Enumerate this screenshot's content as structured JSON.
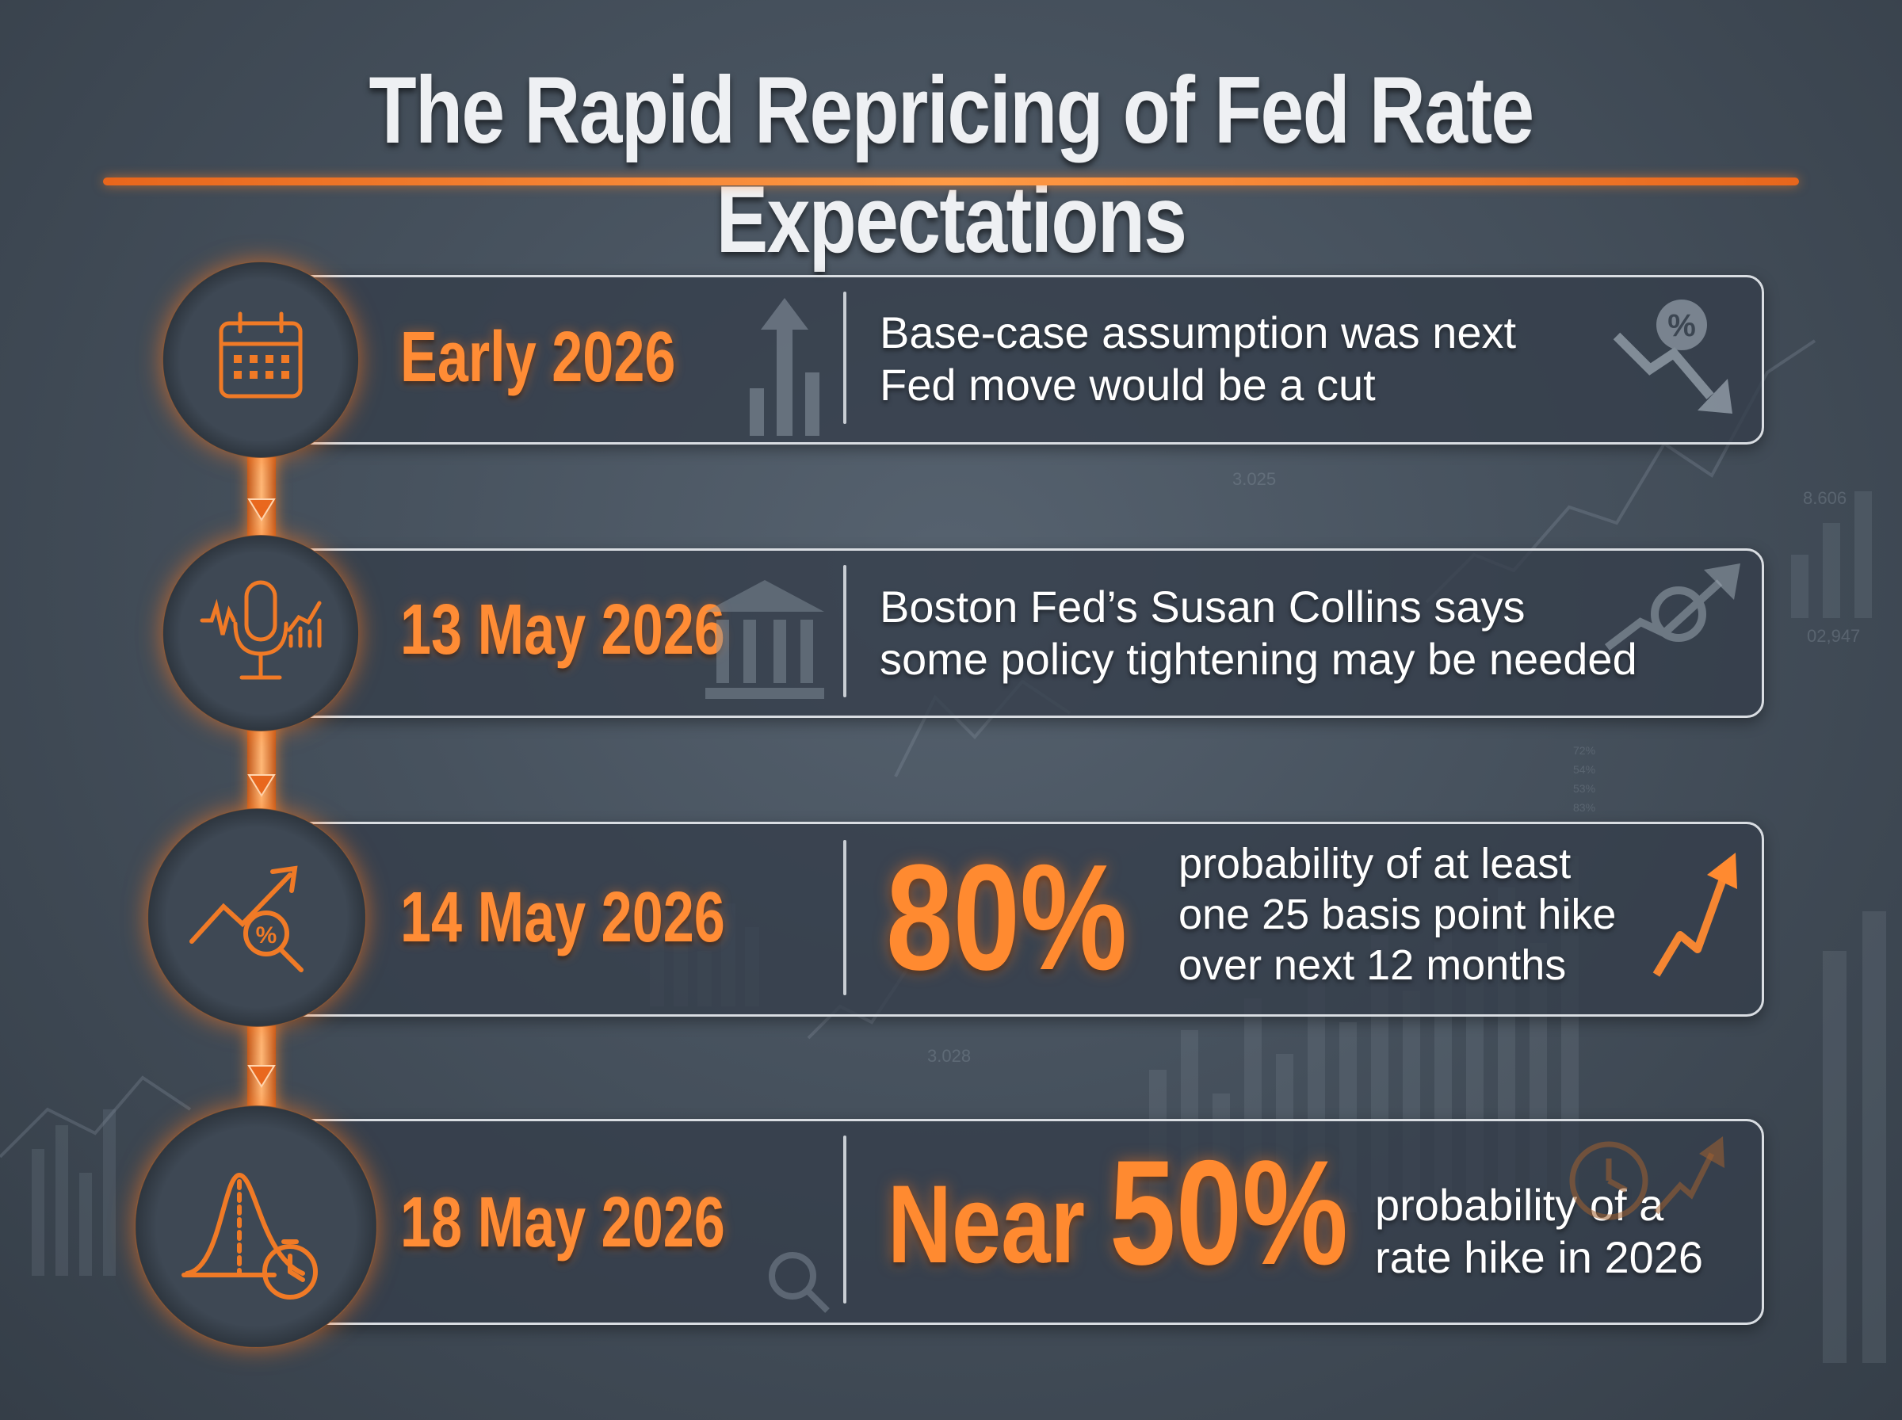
{
  "title": "The Rapid Repricing of Fed Rate Expectations",
  "colors": {
    "accent": "#ff8a30",
    "text": "#ffffff",
    "card_border": "#d9dde2"
  },
  "background_labels": [
    "3.025",
    "8.606",
    "02,947",
    "3.028",
    "72%",
    "54%",
    "53%",
    "83%"
  ],
  "timeline": [
    {
      "icon": "calendar-icon",
      "date": "Early 2026",
      "lines": [
        "Base-case assumption was next",
        "Fed move would be a cut"
      ],
      "side_icon": "percent-down-arrow-icon"
    },
    {
      "icon": "microphone-chart-icon",
      "date": "13 May 2026",
      "lines": [
        "Boston Fed’s Susan Collins says",
        "some policy tightening may be needed"
      ],
      "side_icon": "percent-up-arrow-icon"
    },
    {
      "icon": "trend-magnifier-percent-icon",
      "date": "14 May 2026",
      "highlight": "80%",
      "lines": [
        "probability of at least",
        "one 25 basis point hike",
        "over next 12 months"
      ],
      "side_icon": "upward-arrow-icon"
    },
    {
      "icon": "bell-curve-stopwatch-icon",
      "date": "18 May 2026",
      "highlight_prefix": "Near",
      "highlight": "50%",
      "lines": [
        "probability of a",
        "rate hike in 2026"
      ],
      "side_icon": "clock-up-arrow-icon"
    }
  ]
}
